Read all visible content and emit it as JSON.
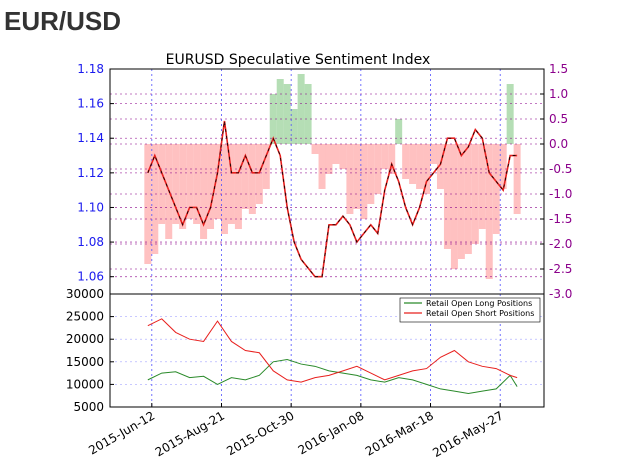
{
  "header": {
    "title": "EUR/USD"
  },
  "colors": {
    "left_axis": "#1a1aee",
    "right_axis": "#8b008b",
    "long": "#2a8a2a",
    "short": "#e8201e",
    "positive_fill": "#a8d8a8",
    "negative_fill": "#ffb6b6",
    "price": "#000000",
    "grid": "#5050ff"
  },
  "chart_data": [
    {
      "type": "line",
      "title": "EURUSD Speculative Sentiment Index",
      "x_tick_labels": [
        "2015-Jun-12",
        "2015-Aug-21",
        "2015-Oct-30",
        "2016-Jan-08",
        "2016-Mar-18",
        "2016-May-27"
      ],
      "x_range": [
        "2015-05-01",
        "2016-07-10"
      ],
      "ylim": [
        1.05,
        1.18
      ],
      "y_ticks": [
        "1.06",
        "1.08",
        "1.10",
        "1.12",
        "1.14",
        "1.16",
        "1.18"
      ],
      "y2lim": [
        -3.0,
        1.5
      ],
      "y2_ticks": [
        "-3.0",
        "-2.5",
        "-2.0",
        "-1.5",
        "-1.0",
        "-0.5",
        "0.0",
        "0.5",
        "1.0",
        "1.5"
      ],
      "grid": true,
      "series": [
        {
          "axis": "left",
          "style": "black-over-red-price",
          "x": [
            "2015-06-08",
            "2015-06-15",
            "2015-06-22",
            "2015-06-29",
            "2015-07-06",
            "2015-07-13",
            "2015-07-20",
            "2015-07-27",
            "2015-08-03",
            "2015-08-10",
            "2015-08-17",
            "2015-08-24",
            "2015-08-31",
            "2015-09-07",
            "2015-09-14",
            "2015-09-21",
            "2015-09-28",
            "2015-10-05",
            "2015-10-12",
            "2015-10-19",
            "2015-10-26",
            "2015-11-02",
            "2015-11-09",
            "2015-11-16",
            "2015-11-23",
            "2015-11-30",
            "2015-12-07",
            "2015-12-14",
            "2015-12-21",
            "2015-12-28",
            "2016-01-04",
            "2016-01-11",
            "2016-01-18",
            "2016-01-25",
            "2016-02-01",
            "2016-02-08",
            "2016-02-15",
            "2016-02-22",
            "2016-02-29",
            "2016-03-07",
            "2016-03-14",
            "2016-03-21",
            "2016-03-28",
            "2016-04-04",
            "2016-04-11",
            "2016-04-18",
            "2016-04-25",
            "2016-05-02",
            "2016-05-09",
            "2016-05-16",
            "2016-05-23",
            "2016-05-30",
            "2016-06-06",
            "2016-06-13"
          ],
          "values": [
            1.12,
            1.13,
            1.12,
            1.11,
            1.1,
            1.09,
            1.1,
            1.1,
            1.09,
            1.1,
            1.12,
            1.15,
            1.12,
            1.12,
            1.13,
            1.12,
            1.12,
            1.13,
            1.14,
            1.13,
            1.1,
            1.08,
            1.07,
            1.065,
            1.06,
            1.06,
            1.09,
            1.09,
            1.095,
            1.09,
            1.08,
            1.085,
            1.09,
            1.085,
            1.11,
            1.125,
            1.115,
            1.1,
            1.09,
            1.1,
            1.115,
            1.12,
            1.125,
            1.14,
            1.14,
            1.13,
            1.135,
            1.145,
            1.14,
            1.12,
            1.115,
            1.11,
            1.13,
            1.13
          ]
        },
        {
          "axis": "right",
          "style": "sentiment-fill",
          "x": [
            "2015-06-08",
            "2015-06-15",
            "2015-06-22",
            "2015-06-29",
            "2015-07-06",
            "2015-07-13",
            "2015-07-20",
            "2015-07-27",
            "2015-08-03",
            "2015-08-10",
            "2015-08-17",
            "2015-08-24",
            "2015-08-31",
            "2015-09-07",
            "2015-09-14",
            "2015-09-21",
            "2015-09-28",
            "2015-10-05",
            "2015-10-12",
            "2015-10-19",
            "2015-10-26",
            "2015-11-02",
            "2015-11-09",
            "2015-11-16",
            "2015-11-23",
            "2015-11-30",
            "2015-12-07",
            "2015-12-14",
            "2015-12-21",
            "2015-12-28",
            "2016-01-04",
            "2016-01-11",
            "2016-01-18",
            "2016-01-25",
            "2016-02-01",
            "2016-02-08",
            "2016-02-15",
            "2016-02-22",
            "2016-02-29",
            "2016-03-07",
            "2016-03-14",
            "2016-03-21",
            "2016-03-28",
            "2016-04-04",
            "2016-04-11",
            "2016-04-18",
            "2016-04-25",
            "2016-05-02",
            "2016-05-09",
            "2016-05-16",
            "2016-05-23",
            "2016-05-30",
            "2016-06-06",
            "2016-06-13"
          ],
          "values": [
            -2.4,
            -2.2,
            -1.6,
            -1.9,
            -1.6,
            -1.7,
            -1.5,
            -1.6,
            -1.9,
            -1.7,
            -1.5,
            -1.8,
            -1.6,
            -1.7,
            -1.3,
            -1.4,
            -1.2,
            -0.9,
            1.0,
            1.3,
            1.2,
            0.7,
            1.4,
            1.2,
            -0.2,
            -0.9,
            -0.6,
            -0.4,
            -0.5,
            -1.4,
            -1.3,
            -1.5,
            -1.2,
            -1.0,
            -0.5,
            -0.6,
            0.5,
            -0.7,
            -0.8,
            -0.9,
            -1.0,
            -0.4,
            -0.9,
            -2.1,
            -2.5,
            -2.3,
            -2.2,
            -2.0,
            -1.7,
            -2.7,
            -1.8,
            -0.9,
            1.2,
            -1.4
          ]
        }
      ]
    },
    {
      "type": "line",
      "x_range": [
        "2015-05-01",
        "2016-07-10"
      ],
      "ylim": [
        5000,
        30000
      ],
      "y_ticks": [
        "5000",
        "10000",
        "15000",
        "20000",
        "25000",
        "30000"
      ],
      "grid": true,
      "legend_position": "top-right",
      "series": [
        {
          "name": "Retail Open Long Positions",
          "color_key": "long",
          "x": [
            "2015-06-08",
            "2015-06-22",
            "2015-07-06",
            "2015-07-20",
            "2015-08-03",
            "2015-08-17",
            "2015-08-31",
            "2015-09-14",
            "2015-09-28",
            "2015-10-12",
            "2015-10-26",
            "2015-11-09",
            "2015-11-23",
            "2015-12-07",
            "2015-12-21",
            "2016-01-04",
            "2016-01-18",
            "2016-02-01",
            "2016-02-15",
            "2016-02-29",
            "2016-03-14",
            "2016-03-28",
            "2016-04-11",
            "2016-04-25",
            "2016-05-09",
            "2016-05-23",
            "2016-06-06",
            "2016-06-13"
          ],
          "values": [
            11000,
            12500,
            12800,
            11500,
            11800,
            10000,
            11500,
            11000,
            12000,
            15000,
            15500,
            14500,
            14000,
            13000,
            12500,
            12000,
            11000,
            10500,
            11500,
            11000,
            10000,
            9000,
            8500,
            8000,
            8500,
            9000,
            12000,
            9500
          ]
        },
        {
          "name": "Retail Open Short Positions",
          "color_key": "short",
          "x": [
            "2015-06-08",
            "2015-06-22",
            "2015-07-06",
            "2015-07-20",
            "2015-08-03",
            "2015-08-17",
            "2015-08-31",
            "2015-09-14",
            "2015-09-28",
            "2015-10-12",
            "2015-10-26",
            "2015-11-09",
            "2015-11-23",
            "2015-12-07",
            "2015-12-21",
            "2016-01-04",
            "2016-01-18",
            "2016-02-01",
            "2016-02-15",
            "2016-02-29",
            "2016-03-14",
            "2016-03-28",
            "2016-04-11",
            "2016-04-25",
            "2016-05-09",
            "2016-05-23",
            "2016-06-06",
            "2016-06-13"
          ],
          "values": [
            23000,
            24500,
            21500,
            20000,
            19500,
            24000,
            19500,
            17500,
            17000,
            13000,
            11000,
            10500,
            11500,
            12000,
            13000,
            14000,
            12500,
            11000,
            12000,
            13000,
            13500,
            16000,
            17500,
            15000,
            14000,
            13500,
            12000,
            11500
          ]
        }
      ]
    }
  ]
}
